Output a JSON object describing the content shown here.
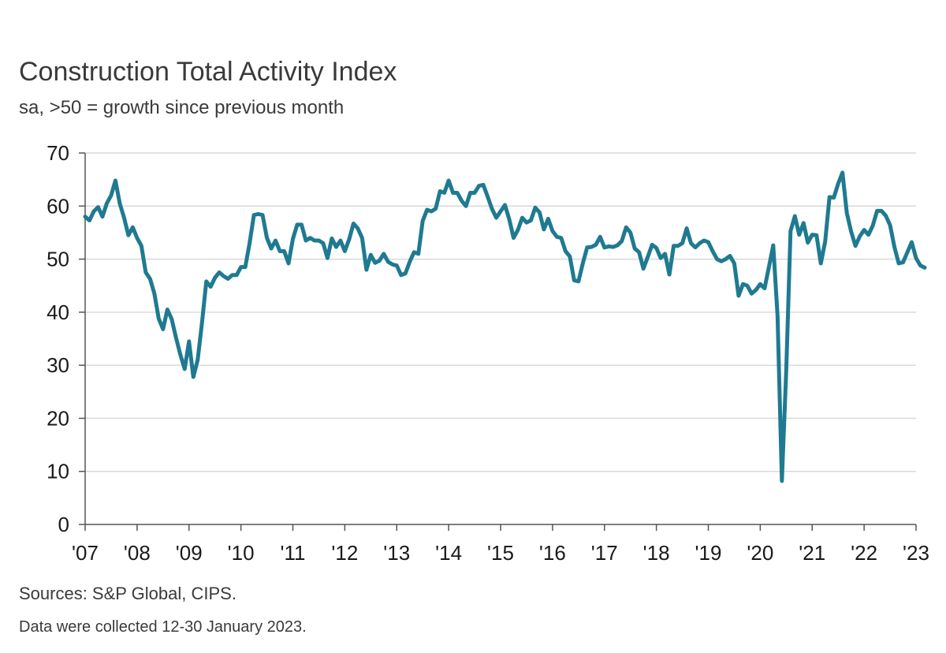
{
  "header": {
    "title": "Construction Total Activity Index",
    "subtitle": "sa, >50 = growth since previous month"
  },
  "footer": {
    "source": "Sources: S&P Global, CIPS.",
    "note": "Data were collected 12-30 January 2023."
  },
  "colors": {
    "line": "#1f7a91",
    "grid": "#d9d9d9",
    "axis": "#555555"
  },
  "chart_data": {
    "type": "line",
    "title": "Construction Total Activity Index",
    "subtitle": "sa, >50 = growth since previous month",
    "xlabel": "",
    "ylabel": "",
    "ylim": [
      0,
      70
    ],
    "yticks": [
      0,
      10,
      20,
      30,
      40,
      50,
      60,
      70
    ],
    "xticklabels": [
      "'07",
      "'08",
      "'09",
      "'10",
      "'11",
      "'12",
      "'13",
      "'14",
      "'15",
      "'16",
      "'17",
      "'18",
      "'19",
      "'20",
      "'21",
      "'22",
      "'23"
    ],
    "xrange": [
      "2007-01",
      "2023-01"
    ],
    "grid": true,
    "legend": "none",
    "series": [
      {
        "x_start": "2007-01",
        "frequency": "monthly",
        "values": [
          58,
          57.3,
          59,
          59.8,
          58,
          60.5,
          62,
          64.8,
          60.5,
          57.8,
          54.5,
          56,
          54,
          52.5,
          47.5,
          46.3,
          43.5,
          38.8,
          36.8,
          40.5,
          38.7,
          35.2,
          32,
          29.3,
          34.5,
          27.8,
          31,
          38,
          45.8,
          44.8,
          46.5,
          47.5,
          46.8,
          46.3,
          47,
          47,
          48.5,
          48.5,
          53,
          58.3,
          58.5,
          58.3,
          54,
          52,
          53.5,
          51.5,
          51.5,
          49.2,
          53.8,
          56.5,
          56.5,
          53.5,
          54,
          53.5,
          53.5,
          53,
          50.2,
          53.9,
          52.3,
          53.5,
          51.5,
          53.7,
          56.7,
          55.8,
          54,
          48,
          50.8,
          49.3,
          49.7,
          51,
          49.5,
          49,
          48.8,
          47,
          47.3,
          49.5,
          51.3,
          51,
          57.2,
          59.3,
          59,
          59.5,
          62.8,
          62.5,
          64.8,
          62.5,
          62.5,
          61,
          60,
          62.5,
          62.5,
          63.8,
          64,
          61.8,
          59.5,
          57.8,
          59,
          60.2,
          57.5,
          54,
          55.5,
          57.8,
          56.9,
          57.3,
          59.7,
          58.8,
          55.6,
          57.6,
          55.3,
          54.2,
          54,
          51.5,
          50.5,
          46,
          45.8,
          49.2,
          52.2,
          52.3,
          52.7,
          54.2,
          52.2,
          52.4,
          52.3,
          52.6,
          53.4,
          56,
          55,
          52,
          51.3,
          48.2,
          50.4,
          52.7,
          52.1,
          50.2,
          51,
          47.1,
          52.5,
          52.5,
          53,
          55.8,
          53,
          52.2,
          53,
          53.5,
          53.2,
          51.5,
          50,
          49.6,
          50,
          50.6,
          49.2,
          43.1,
          45.3,
          45,
          43.5,
          44.2,
          45.3,
          44.5,
          48.5,
          52.6,
          39.3,
          8.2,
          28.9,
          55.3,
          58.1,
          54.6,
          56.8,
          53.1,
          54.6,
          54.5,
          49.2,
          53.3,
          61.7,
          61.6,
          64.2,
          66.3,
          58.7,
          55.2,
          52.5,
          54.3,
          55.5,
          54.6,
          56.3,
          59.1,
          59.1,
          58.2,
          56.4,
          52.3,
          49.2,
          49.4,
          51.3,
          53.2,
          50.2,
          48.8,
          48.4
        ]
      }
    ]
  }
}
